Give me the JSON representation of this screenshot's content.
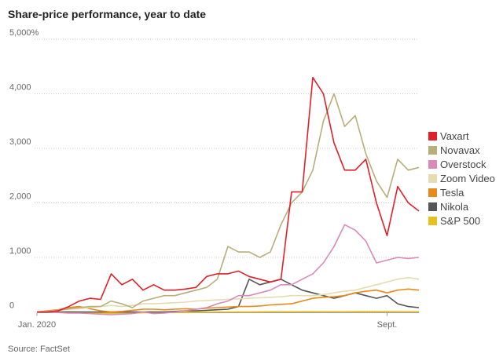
{
  "chart_data": {
    "type": "line",
    "title": "Share-price performance, year to date",
    "source": "Source: FactSet",
    "categories": [
      "Jan. 2020",
      null,
      null,
      null,
      null,
      null,
      null,
      null,
      null,
      null,
      null,
      null,
      null,
      null,
      null,
      null,
      null,
      null,
      null,
      null,
      null,
      null,
      null,
      null,
      null,
      null,
      null,
      null,
      null,
      null,
      null,
      null,
      null,
      "Sept.",
      null,
      null,
      null
    ],
    "ylim": [
      -50,
      5000
    ],
    "yticks": [
      0,
      {
        "value": 1000,
        "label": "1,000"
      },
      {
        "value": 2000,
        "label": "2,000"
      },
      {
        "value": 3000,
        "label": "3,000"
      },
      {
        "value": 4000,
        "label": "4,000"
      },
      {
        "value": 5000,
        "label": "5,000%"
      }
    ],
    "grid": true,
    "legend": "right",
    "series": [
      {
        "name": "S&P 500",
        "color": "#e8c020",
        "values": [
          0,
          2,
          3,
          2,
          0,
          -10,
          -20,
          -25,
          -30,
          -20,
          -15,
          -10,
          -8,
          -5,
          -5,
          -3,
          -2,
          0,
          0,
          2,
          2,
          3,
          4,
          5,
          5,
          6,
          6,
          7,
          8,
          8,
          9,
          10,
          10,
          9,
          8,
          8,
          7
        ]
      },
      {
        "name": "Nikola",
        "color": "#555555",
        "values": [
          0,
          0,
          0,
          0,
          0,
          0,
          0,
          0,
          0,
          0,
          0,
          0,
          0,
          10,
          20,
          20,
          30,
          40,
          50,
          100,
          600,
          500,
          550,
          600,
          500,
          400,
          350,
          300,
          250,
          300,
          350,
          300,
          250,
          300,
          150,
          100,
          80
        ]
      },
      {
        "name": "Tesla",
        "color": "#e88a1a",
        "values": [
          0,
          20,
          40,
          80,
          100,
          60,
          20,
          0,
          10,
          30,
          50,
          50,
          40,
          50,
          60,
          50,
          70,
          80,
          90,
          100,
          100,
          110,
          130,
          140,
          150,
          200,
          250,
          270,
          280,
          300,
          350,
          380,
          400,
          350,
          400,
          420,
          400
        ]
      },
      {
        "name": "Zoom Video",
        "color": "#e6dcb0",
        "values": [
          0,
          10,
          30,
          50,
          60,
          80,
          100,
          120,
          100,
          120,
          150,
          150,
          160,
          170,
          180,
          200,
          210,
          220,
          230,
          240,
          250,
          260,
          270,
          280,
          300,
          300,
          300,
          320,
          350,
          380,
          400,
          450,
          500,
          550,
          600,
          630,
          600
        ]
      },
      {
        "name": "Overstock",
        "color": "#d98ab8",
        "values": [
          0,
          0,
          -10,
          -20,
          -20,
          -30,
          -40,
          -50,
          -40,
          -30,
          0,
          -30,
          -20,
          0,
          20,
          50,
          80,
          150,
          200,
          300,
          300,
          350,
          400,
          500,
          500,
          600,
          700,
          900,
          1200,
          1600,
          1500,
          1300,
          900,
          950,
          1000,
          980,
          1000
        ]
      },
      {
        "name": "Novavax",
        "color": "#b8ae7a",
        "values": [
          0,
          10,
          30,
          60,
          80,
          100,
          100,
          200,
          150,
          80,
          200,
          250,
          300,
          300,
          350,
          400,
          450,
          600,
          1200,
          1100,
          1100,
          1000,
          1100,
          1600,
          2000,
          2200,
          2600,
          3500,
          4000,
          3400,
          3600,
          2900,
          2400,
          2100,
          2800,
          2600,
          2650
        ]
      },
      {
        "name": "Vaxart",
        "color": "#e0202a",
        "values": [
          0,
          0,
          20,
          100,
          200,
          250,
          230,
          700,
          500,
          600,
          400,
          500,
          400,
          400,
          420,
          450,
          650,
          700,
          700,
          750,
          650,
          600,
          550,
          600,
          2200,
          2200,
          4300,
          4000,
          3100,
          2600,
          2600,
          2800,
          2000,
          1400,
          2300,
          2000,
          1850
        ]
      }
    ]
  }
}
